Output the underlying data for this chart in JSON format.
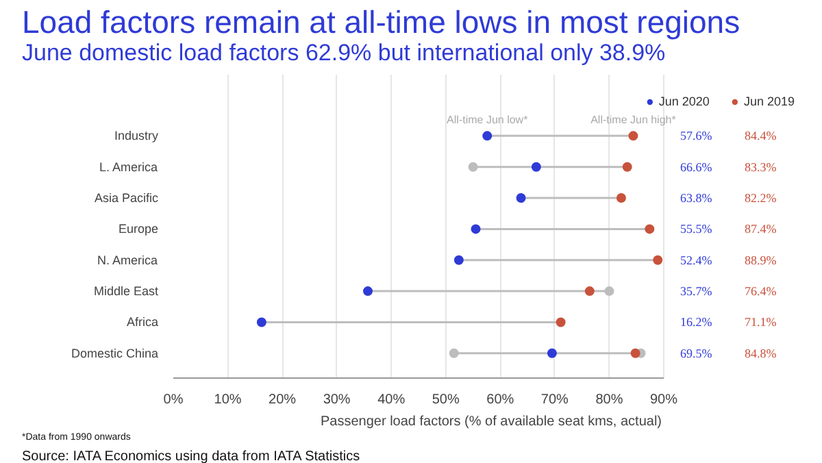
{
  "chart_data": {
    "type": "lollipop",
    "orientation": "horizontal",
    "title": "Load factors remain at all-time lows in most regions",
    "subtitle": "June domestic load factors 62.9% but international only 38.9%",
    "categories": [
      "Industry",
      "L. America",
      "Asia Pacific",
      "Europe",
      "N. America",
      "Middle East",
      "Africa",
      "Domestic China"
    ],
    "series": [
      {
        "color": "#bdbdbd",
        "type": "scatter",
        "values": [
          null,
          55.0,
          null,
          null,
          null,
          null,
          null,
          51.5
        ]
      },
      {
        "color": "#bdbdbd",
        "type": "scatter",
        "values": [
          null,
          null,
          null,
          null,
          null,
          80.0,
          null,
          85.8
        ]
      },
      {
        "name": "Jun 2020",
        "color": "#2f3bd6",
        "values": [
          57.6,
          66.6,
          63.8,
          55.5,
          52.4,
          35.7,
          16.2,
          69.5
        ],
        "value_labels": [
          "57.6%",
          "66.6%",
          "63.8%",
          "55.5%",
          "52.4%",
          "35.7%",
          "16.2%",
          "69.5%"
        ]
      },
      {
        "name": "Jun 2019",
        "color": "#c8523c",
        "values": [
          84.4,
          83.3,
          82.2,
          87.4,
          88.9,
          76.4,
          71.1,
          84.8
        ],
        "value_labels": [
          "84.4%",
          "83.3%",
          "82.2%",
          "87.4%",
          "88.9%",
          "76.4%",
          "71.1%",
          "84.8%"
        ]
      }
    ],
    "xlabel": "Passenger load factors (% of available seat kms, actual)",
    "xlim": [
      0,
      90
    ],
    "xticks": [
      {
        "value": 0,
        "label": "0%"
      },
      {
        "value": 10,
        "label": "10%"
      },
      {
        "value": 20,
        "label": "20%"
      },
      {
        "value": 30,
        "label": "30%"
      },
      {
        "value": 40,
        "label": "40%"
      },
      {
        "value": 50,
        "label": "50%"
      },
      {
        "value": 60,
        "label": "60%"
      },
      {
        "value": 70,
        "label": "70%"
      },
      {
        "value": 80,
        "label": "80%"
      },
      {
        "value": 90,
        "label": "90%"
      }
    ],
    "grid": "x",
    "legend": "top right",
    "marker": "circle",
    "annotations": [
      {
        "text": "All-time Jun low*",
        "x": 57.6,
        "y": "Industry"
      },
      {
        "text": "All-time Jun high*",
        "x": 84.4,
        "y": "Industry"
      },
      "*Data from 1990 onwards",
      "Source: IATA Economics using data from IATA Statistics"
    ]
  }
}
